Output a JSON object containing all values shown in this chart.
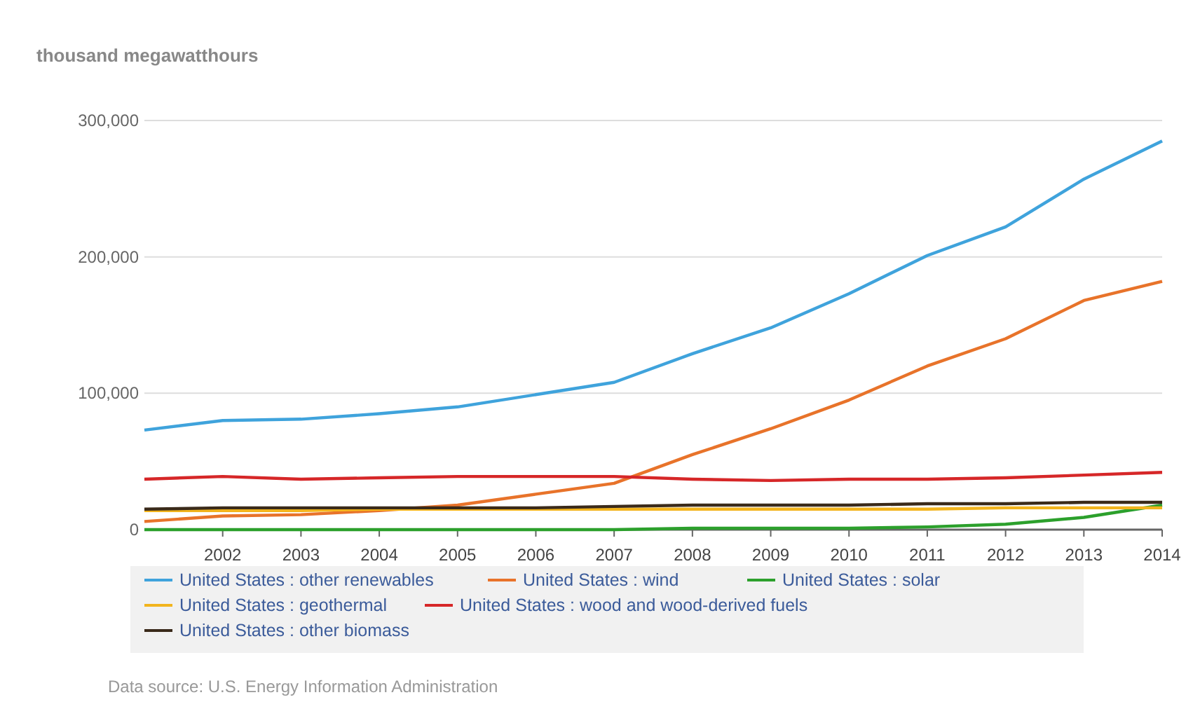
{
  "chart_data": {
    "type": "line",
    "ylabel": "thousand megawatthours",
    "x": [
      2001,
      2002,
      2003,
      2004,
      2005,
      2006,
      2007,
      2008,
      2009,
      2010,
      2011,
      2012,
      2013,
      2014
    ],
    "xlim": [
      2001,
      2014
    ],
    "xticks": [
      2002,
      2003,
      2004,
      2005,
      2006,
      2007,
      2008,
      2009,
      2010,
      2011,
      2012,
      2013,
      2014
    ],
    "ylim": [
      0,
      300000
    ],
    "yticks": [
      {
        "value": 0,
        "label": "0"
      },
      {
        "value": 100000,
        "label": "100,000"
      },
      {
        "value": 200000,
        "label": "200,000"
      },
      {
        "value": 300000,
        "label": "300,000"
      }
    ],
    "grid": "y",
    "legend": "bottom",
    "annotations": [
      "Data source: U.S. Energy Information Administration"
    ],
    "series": [
      {
        "name": "United States : other renewables",
        "color": "#3fa3dc",
        "values": [
          73000,
          80000,
          81000,
          85000,
          90000,
          99000,
          108000,
          129000,
          148000,
          173000,
          201000,
          222000,
          257000,
          285000
        ]
      },
      {
        "name": "United States : wind",
        "color": "#e8732a",
        "values": [
          6000,
          10000,
          11000,
          14000,
          18000,
          26000,
          34000,
          55000,
          74000,
          95000,
          120000,
          140000,
          168000,
          182000
        ]
      },
      {
        "name": "United States : solar",
        "color": "#2ca02c",
        "values": [
          0,
          0,
          0,
          0,
          0,
          0,
          0,
          1000,
          1000,
          1000,
          2000,
          4000,
          9000,
          18000
        ]
      },
      {
        "name": "United States : geothermal",
        "color": "#f2b41d",
        "values": [
          14000,
          14000,
          14000,
          15000,
          15000,
          15000,
          15000,
          15000,
          15000,
          15000,
          15000,
          16000,
          16000,
          16000
        ]
      },
      {
        "name": "United States : wood and wood-derived fuels",
        "color": "#d62728",
        "values": [
          37000,
          39000,
          37000,
          38000,
          39000,
          39000,
          39000,
          37000,
          36000,
          37000,
          37000,
          38000,
          40000,
          42000
        ]
      },
      {
        "name": "United States : other biomass",
        "color": "#3a2a1a",
        "values": [
          15000,
          16000,
          16000,
          16000,
          16000,
          16000,
          17000,
          18000,
          18000,
          18000,
          19000,
          19000,
          20000,
          20000
        ]
      }
    ]
  }
}
